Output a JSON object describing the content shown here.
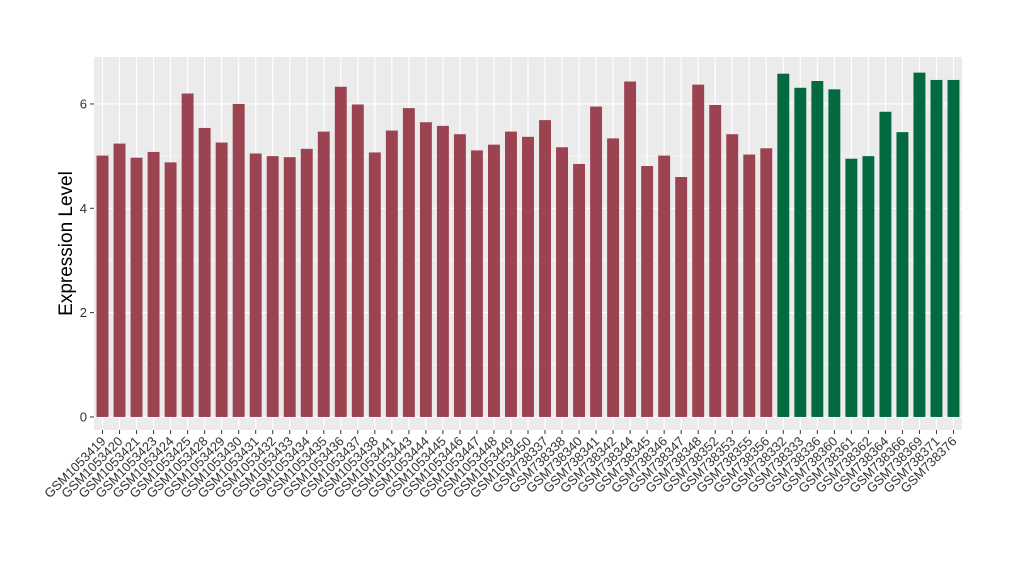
{
  "chart_data": {
    "type": "bar",
    "title": "",
    "xlabel": "",
    "ylabel": "Expression Level",
    "ylim": [
      -0.25,
      6.9
    ],
    "yticks": [
      0,
      2,
      4,
      6
    ],
    "grid": true,
    "legend": "none",
    "categories": [
      "GSM1053419",
      "GSM1053420",
      "GSM1053421",
      "GSM1053423",
      "GSM1053424",
      "GSM1053425",
      "GSM1053428",
      "GSM1053429",
      "GSM1053430",
      "GSM1053431",
      "GSM1053432",
      "GSM1053433",
      "GSM1053434",
      "GSM1053435",
      "GSM1053436",
      "GSM1053437",
      "GSM1053438",
      "GSM1053441",
      "GSM1053443",
      "GSM1053444",
      "GSM1053445",
      "GSM1053446",
      "GSM1053447",
      "GSM1053448",
      "GSM1053449",
      "GSM1053450",
      "GSM738337",
      "GSM738338",
      "GSM738340",
      "GSM738341",
      "GSM738342",
      "GSM738344",
      "GSM738345",
      "GSM738346",
      "GSM738347",
      "GSM738348",
      "GSM738352",
      "GSM738353",
      "GSM738355",
      "GSM738356",
      "GSM738332",
      "GSM738333",
      "GSM738336",
      "GSM738360",
      "GSM738361",
      "GSM738362",
      "GSM738364",
      "GSM738366",
      "GSM738369",
      "GSM738371",
      "GSM738376"
    ],
    "values": [
      5.01,
      5.24,
      4.97,
      5.08,
      4.88,
      6.2,
      5.54,
      5.26,
      6.0,
      5.05,
      5.0,
      4.98,
      5.14,
      5.47,
      6.33,
      5.99,
      5.07,
      5.49,
      5.92,
      5.65,
      5.58,
      5.42,
      5.11,
      5.22,
      5.47,
      5.37,
      5.69,
      5.17,
      4.85,
      5.95,
      5.34,
      6.43,
      4.81,
      5.01,
      4.6,
      6.37,
      5.98,
      5.42,
      5.03,
      5.15,
      6.58,
      6.31,
      6.44,
      6.28,
      4.95,
      5.0,
      5.85,
      5.46,
      6.6,
      6.46,
      6.46
    ],
    "series_colors": [
      "#9b4350",
      "#9b4350",
      "#9b4350",
      "#9b4350",
      "#9b4350",
      "#9b4350",
      "#9b4350",
      "#9b4350",
      "#9b4350",
      "#9b4350",
      "#9b4350",
      "#9b4350",
      "#9b4350",
      "#9b4350",
      "#9b4350",
      "#9b4350",
      "#9b4350",
      "#9b4350",
      "#9b4350",
      "#9b4350",
      "#9b4350",
      "#9b4350",
      "#9b4350",
      "#9b4350",
      "#9b4350",
      "#9b4350",
      "#9b4350",
      "#9b4350",
      "#9b4350",
      "#9b4350",
      "#9b4350",
      "#9b4350",
      "#9b4350",
      "#9b4350",
      "#9b4350",
      "#9b4350",
      "#9b4350",
      "#9b4350",
      "#9b4350",
      "#9b4350",
      "#03693e",
      "#03693e",
      "#03693e",
      "#03693e",
      "#03693e",
      "#03693e",
      "#03693e",
      "#03693e",
      "#03693e",
      "#03693e",
      "#03693e"
    ],
    "panel_color": "#ebebeb",
    "grid_color": "#ffffff"
  }
}
